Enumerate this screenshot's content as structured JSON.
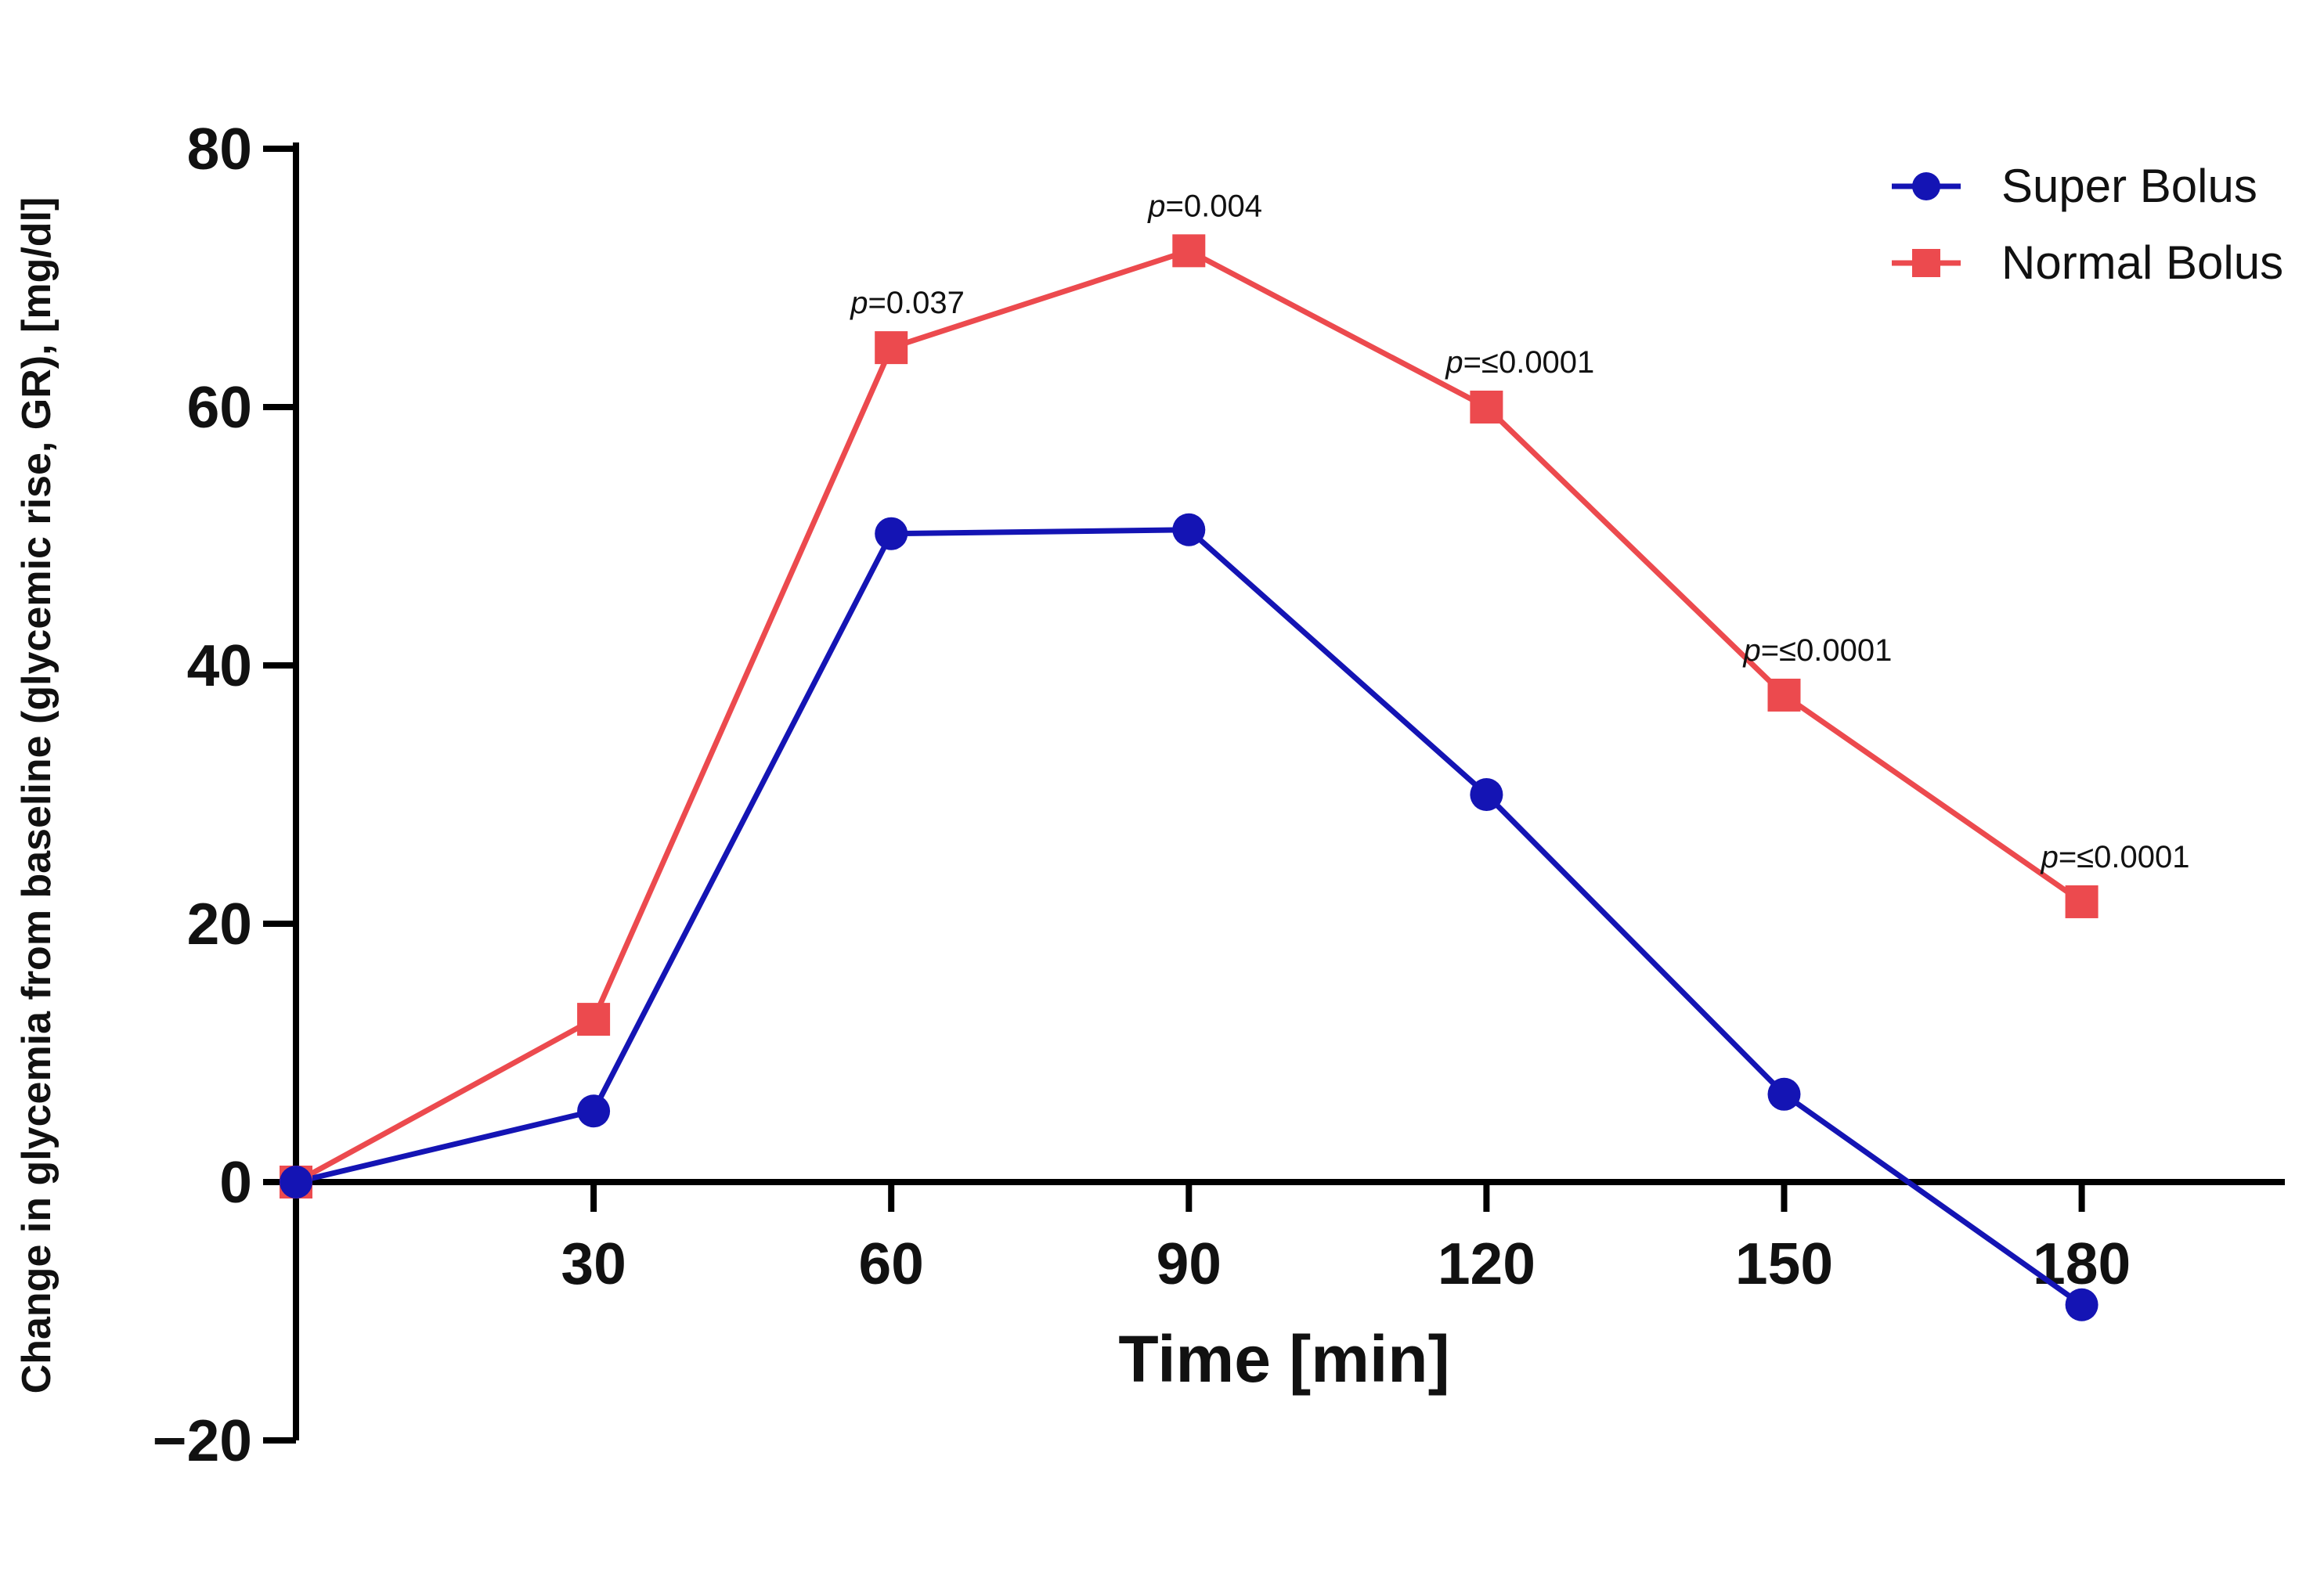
{
  "chart_data": {
    "type": "line",
    "title": "",
    "xlabel": "Time [min]",
    "ylabel": "Change in glycemia from baseline (glycemic rise, GR), [mg/dl]",
    "x": [
      0,
      30,
      60,
      90,
      120,
      150,
      180
    ],
    "x_tick_labels": [
      "30",
      "60",
      "90",
      "120",
      "150",
      "180"
    ],
    "y_tick_labels": [
      "80",
      "60",
      "40",
      "20",
      "0",
      "−20"
    ],
    "xlim": [
      0,
      200
    ],
    "ylim": [
      -20,
      80
    ],
    "grid": false,
    "legend_position": "top-right",
    "series": [
      {
        "name": "Super Bolus",
        "color": "#1414b4",
        "marker": "circle",
        "values": [
          0,
          5.5,
          50.2,
          50.5,
          30,
          6.8,
          -9.5
        ]
      },
      {
        "name": "Normal Bolus",
        "color": "#ec4a4e",
        "marker": "square",
        "values": [
          0,
          12.6,
          64.6,
          72.1,
          60,
          37.7,
          21.7
        ]
      }
    ],
    "annotations": [
      {
        "x": 60,
        "y": 64.6,
        "prefix": "p",
        "text": "=0.037"
      },
      {
        "x": 90,
        "y": 72.1,
        "prefix": "p",
        "text": "=0.004"
      },
      {
        "x": 120,
        "y": 60,
        "prefix": "p",
        "text": "=≤0.0001"
      },
      {
        "x": 150,
        "y": 37.7,
        "prefix": "p",
        "text": "=≤0.0001"
      },
      {
        "x": 180,
        "y": 21.7,
        "prefix": "p",
        "text": "=≤0.0001"
      }
    ]
  }
}
